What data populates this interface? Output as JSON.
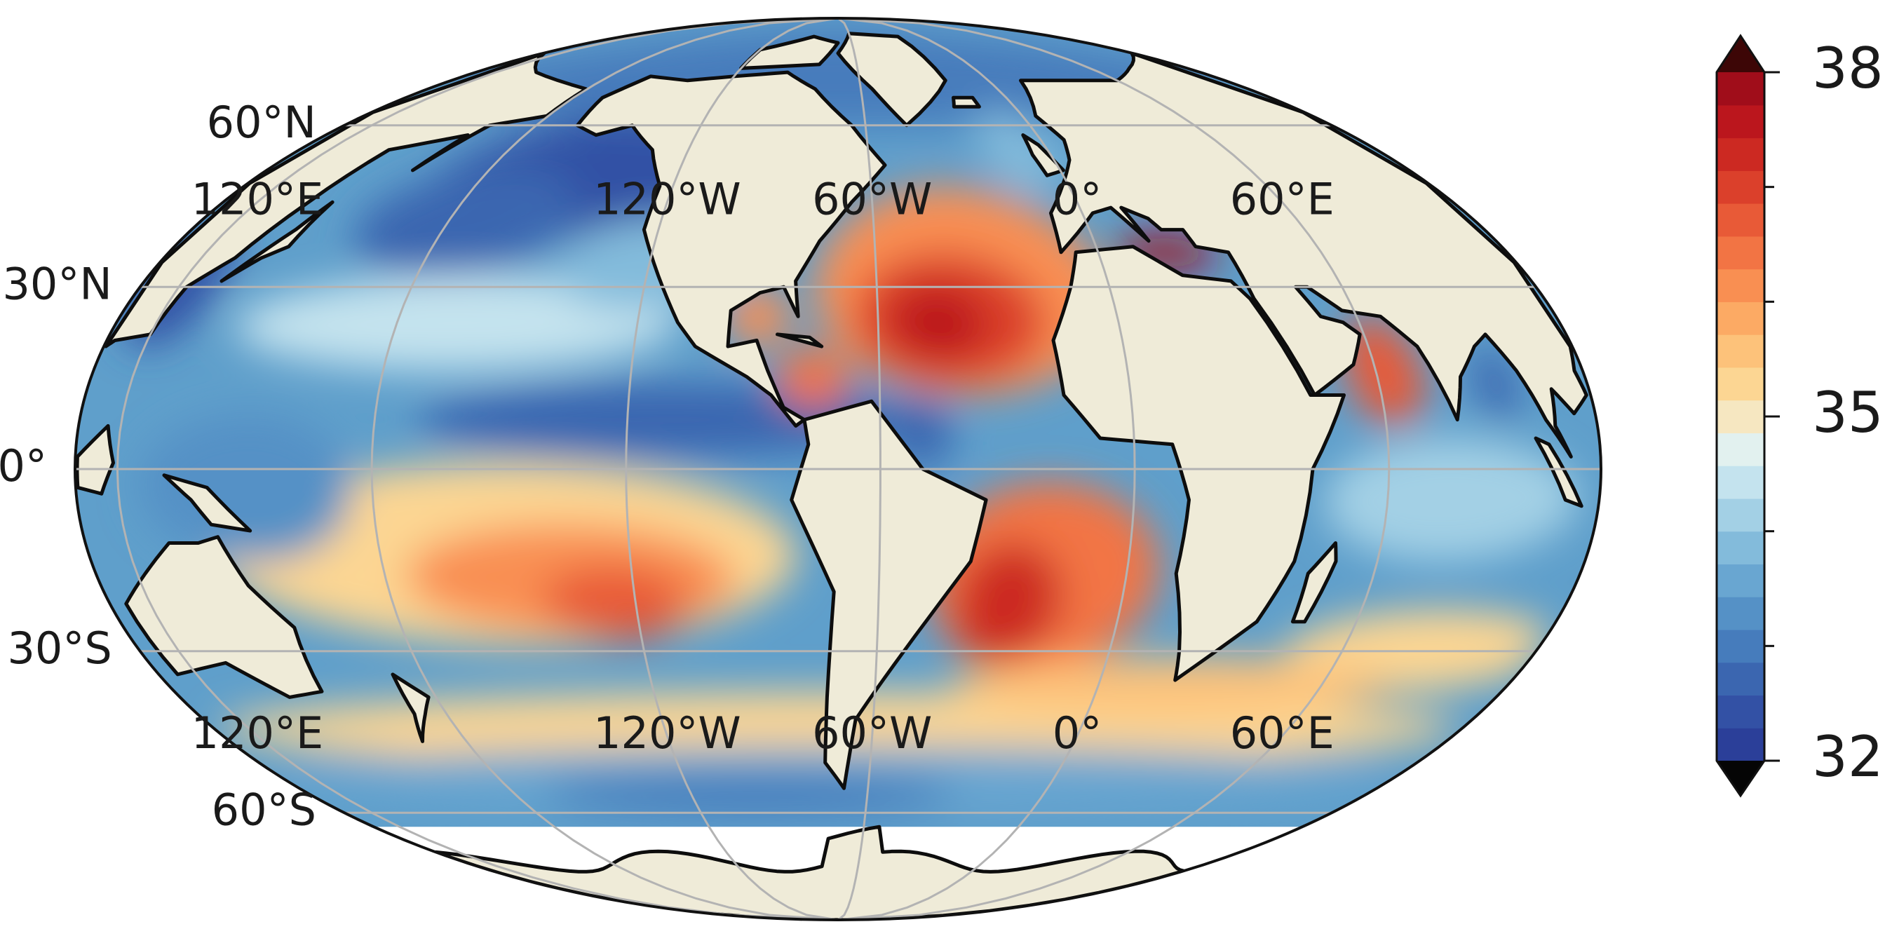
{
  "map": {
    "lat_ticks": [
      {
        "value": 60,
        "label": "60°N"
      },
      {
        "value": 30,
        "label": "30°N"
      },
      {
        "value": 0,
        "label": "0°"
      },
      {
        "value": -30,
        "label": "30°S"
      },
      {
        "value": -60,
        "label": "60°S"
      }
    ],
    "lon_ticks": [
      {
        "value": 120,
        "label": "120°E"
      },
      {
        "value": -120,
        "label": "120°W"
      },
      {
        "value": -60,
        "label": "60°W"
      },
      {
        "value": 0,
        "label": "0°"
      },
      {
        "value": 60,
        "label": "60°E"
      }
    ],
    "unlabeled_meridians": [
      180
    ],
    "colorbar": {
      "range": [
        32,
        38
      ],
      "ticks": [
        32,
        35,
        38
      ],
      "minor_ticks": [
        33,
        34,
        36,
        37
      ],
      "colors": [
        "#2b3f99",
        "#3351a5",
        "#3b66b0",
        "#467cbc",
        "#5591c6",
        "#69a6d1",
        "#83bbdb",
        "#a3d0e5",
        "#c4e3ee",
        "#e2f1ef",
        "#f6e7c1",
        "#fcd693",
        "#fdc27a",
        "#fcaa64",
        "#f98f52",
        "#f27444",
        "#e85a37",
        "#db402b",
        "#cc2922",
        "#bb161d",
        "#a00d1a"
      ],
      "under_color": "#050505",
      "over_color": "#3d0606"
    }
  }
}
